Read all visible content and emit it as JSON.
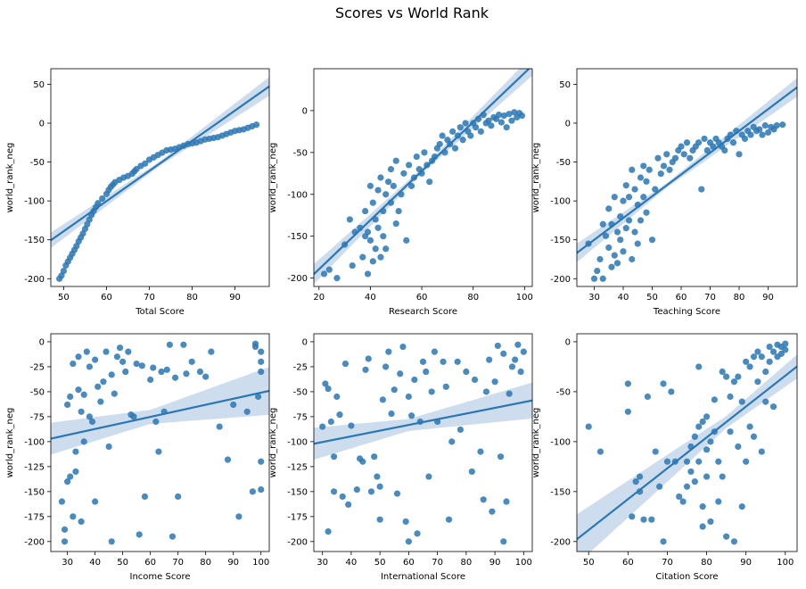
{
  "figure": {
    "title": "Scores vs World Rank"
  },
  "colors": {
    "point": "#2a77b4",
    "line": "#2a77b4",
    "band": "#c4d7ea",
    "axis": "#000000"
  },
  "chart_data": [
    {
      "type": "scatter",
      "xlabel": "Total Score",
      "ylabel": "world_rank_neg",
      "xlim": [
        47,
        98
      ],
      "ylim": [
        -210,
        70
      ],
      "xticks": [
        50,
        60,
        70,
        80,
        90
      ],
      "yticks": [
        -200,
        -150,
        -100,
        -50,
        0,
        50
      ],
      "fit": {
        "slope": 3.88,
        "intercept": -333,
        "band": [
          [
            47,
            10
          ],
          [
            72,
            3
          ],
          [
            98,
            12
          ]
        ]
      },
      "x": [
        49,
        49.5,
        50,
        50.5,
        51,
        51.5,
        52,
        52.5,
        53,
        53.5,
        54,
        54.5,
        55,
        55.5,
        56,
        56.5,
        57,
        57.5,
        58,
        59,
        60,
        60.5,
        61,
        61.5,
        62,
        63,
        64,
        65,
        66,
        66.5,
        67,
        68,
        69,
        70,
        71,
        72,
        73,
        74,
        75,
        76,
        77,
        78,
        79,
        80,
        81,
        82,
        83,
        84,
        85,
        86,
        87,
        88,
        89,
        90,
        91,
        92,
        93,
        94,
        95
      ],
      "y": [
        -200,
        -196,
        -190,
        -183,
        -178,
        -173,
        -168,
        -163,
        -158,
        -152,
        -147,
        -142,
        -136,
        -130,
        -124,
        -118,
        -113,
        -108,
        -103,
        -97,
        -91,
        -86,
        -82,
        -79,
        -76,
        -73,
        -70,
        -68,
        -65,
        -62,
        -59,
        -55,
        -52,
        -47,
        -44,
        -41,
        -38,
        -35,
        -34,
        -33,
        -31,
        -29,
        -27,
        -26,
        -25,
        -23,
        -21,
        -20,
        -19,
        -18,
        -16,
        -14,
        -12,
        -10,
        -9,
        -8,
        -6,
        -4,
        -2
      ]
    },
    {
      "type": "scatter",
      "xlabel": "Research Score",
      "ylabel": "world_rank_neg",
      "xlim": [
        18,
        103
      ],
      "ylim": [
        -210,
        50
      ],
      "xticks": [
        20,
        40,
        60,
        80,
        100
      ],
      "yticks": [
        -200,
        -150,
        -100,
        -50,
        0
      ],
      "fit": {
        "slope": 2.93,
        "intercept": -248,
        "band": [
          [
            18,
            12
          ],
          [
            60,
            3
          ],
          [
            103,
            12
          ]
        ]
      },
      "x": [
        22,
        24,
        27,
        30,
        32,
        33,
        34,
        36,
        37,
        38,
        38,
        39,
        39,
        40,
        40,
        41,
        41,
        42,
        42,
        43,
        43,
        44,
        44,
        45,
        45,
        46,
        46,
        47,
        48,
        48,
        49,
        50,
        50,
        51,
        52,
        53,
        54,
        55,
        56,
        57,
        58,
        59,
        60,
        61,
        62,
        63,
        64,
        65,
        66,
        67,
        68,
        69,
        70,
        71,
        72,
        73,
        74,
        75,
        76,
        77,
        78,
        79,
        80,
        81,
        82,
        83,
        84,
        85,
        86,
        87,
        88,
        89,
        90,
        91,
        92,
        93,
        94,
        95,
        96,
        97,
        98,
        99
      ],
      "y": [
        -195,
        -190,
        -200,
        -160,
        -130,
        -185,
        -145,
        -140,
        -175,
        -150,
        -120,
        -195,
        -145,
        -90,
        -155,
        -110,
        -180,
        -130,
        -165,
        -95,
        -140,
        -80,
        -175,
        -150,
        -120,
        -100,
        -165,
        -85,
        -110,
        -70,
        -90,
        -135,
        -60,
        -120,
        -100,
        -75,
        -155,
        -65,
        -90,
        -80,
        -55,
        -70,
        -75,
        -50,
        -65,
        -85,
        -60,
        -55,
        -45,
        -40,
        -30,
        -50,
        -35,
        -40,
        -25,
        -45,
        -30,
        -20,
        -35,
        -15,
        -25,
        -30,
        -15,
        -20,
        -10,
        -25,
        -5,
        -15,
        -12,
        -18,
        -8,
        -10,
        -5,
        -14,
        -6,
        -20,
        -4,
        -12,
        -2,
        -8,
        -3,
        -6
      ]
    },
    {
      "type": "scatter",
      "xlabel": "Teaching Score",
      "ylabel": "world_rank_neg",
      "xlim": [
        24,
        100
      ],
      "ylim": [
        -210,
        70
      ],
      "xticks": [
        30,
        40,
        50,
        60,
        70,
        80,
        90
      ],
      "yticks": [
        -200,
        -150,
        -100,
        -50,
        0,
        50
      ],
      "fit": {
        "slope": 2.8,
        "intercept": -234,
        "band": [
          [
            24,
            12
          ],
          [
            55,
            3
          ],
          [
            100,
            12
          ]
        ]
      },
      "x": [
        28,
        30,
        31,
        32,
        33,
        33,
        34,
        35,
        35,
        36,
        36,
        37,
        37,
        38,
        38,
        39,
        39,
        40,
        40,
        41,
        41,
        42,
        42,
        43,
        43,
        44,
        44,
        45,
        45,
        46,
        46,
        47,
        47,
        48,
        48,
        49,
        50,
        51,
        52,
        53,
        54,
        55,
        56,
        57,
        58,
        59,
        60,
        61,
        62,
        63,
        64,
        65,
        66,
        67,
        68,
        69,
        70,
        71,
        72,
        73,
        74,
        75,
        76,
        77,
        78,
        79,
        80,
        81,
        82,
        83,
        84,
        85,
        86,
        87,
        88,
        89,
        90,
        91,
        92,
        93,
        95
      ],
      "y": [
        -155,
        -200,
        -190,
        -175,
        -130,
        -200,
        -145,
        -160,
        -110,
        -185,
        -130,
        -170,
        -95,
        -180,
        -140,
        -150,
        -120,
        -165,
        -100,
        -135,
        -80,
        -125,
        -95,
        -175,
        -60,
        -140,
        -85,
        -155,
        -105,
        -70,
        -125,
        -95,
        -55,
        -75,
        -115,
        -60,
        -150,
        -85,
        -45,
        -65,
        -55,
        -40,
        -60,
        -50,
        -45,
        -35,
        -30,
        -40,
        -25,
        -45,
        -35,
        -30,
        -25,
        -85,
        -20,
        -35,
        -25,
        -30,
        -20,
        -25,
        -30,
        -35,
        -20,
        -15,
        -25,
        -10,
        -40,
        -15,
        -20,
        -10,
        -15,
        -5,
        -10,
        -8,
        -15,
        -3,
        -12,
        -5,
        -8,
        -3,
        -2
      ]
    },
    {
      "type": "scatter",
      "xlabel": "Income Score",
      "ylabel": "world_rank_neg",
      "xlim": [
        24,
        103
      ],
      "ylim": [
        -210,
        8
      ],
      "xticks": [
        30,
        40,
        50,
        60,
        70,
        80,
        90,
        100
      ],
      "yticks": [
        -200,
        -175,
        -150,
        -125,
        -100,
        -75,
        -50,
        -25,
        0
      ],
      "fit": {
        "slope": 0.605,
        "intercept": -111.5,
        "band": [
          [
            24,
            16
          ],
          [
            60,
            7
          ],
          [
            103,
            24
          ]
        ]
      },
      "x": [
        28,
        29,
        29,
        30,
        30,
        31,
        31,
        32,
        32,
        33,
        33,
        34,
        34,
        35,
        35,
        36,
        36,
        37,
        38,
        38,
        39,
        40,
        40,
        41,
        42,
        43,
        44,
        45,
        46,
        46,
        47,
        48,
        49,
        50,
        51,
        52,
        53,
        54,
        55,
        56,
        57,
        58,
        60,
        61,
        62,
        63,
        64,
        65,
        66,
        67,
        68,
        69,
        70,
        72,
        73,
        75,
        78,
        80,
        82,
        85,
        88,
        90,
        92,
        95,
        97,
        98,
        98,
        99,
        100,
        100,
        100,
        100,
        100
      ],
      "y": [
        -160,
        -188,
        -200,
        -140,
        -63,
        -135,
        -55,
        -175,
        -22,
        -110,
        -130,
        -15,
        -48,
        -180,
        -70,
        -100,
        -53,
        -10,
        -25,
        -75,
        -80,
        -160,
        -18,
        -45,
        -60,
        -40,
        -10,
        -105,
        -33,
        -200,
        -52,
        -15,
        -6,
        -20,
        -30,
        -10,
        -73,
        -75,
        -22,
        -193,
        -24,
        -155,
        -38,
        -26,
        -80,
        -110,
        -30,
        -70,
        -28,
        -3,
        -195,
        -36,
        -155,
        -3,
        -32,
        -20,
        -30,
        -35,
        -10,
        -85,
        -118,
        -63,
        -175,
        -70,
        -150,
        -2,
        -5,
        -55,
        -10,
        -20,
        -30,
        -120,
        -148
      ]
    },
    {
      "type": "scatter",
      "xlabel": "International Score",
      "ylabel": "world_rank_neg",
      "xlim": [
        27,
        103
      ],
      "ylim": [
        -210,
        8
      ],
      "xticks": [
        30,
        40,
        50,
        60,
        70,
        80,
        90,
        100
      ],
      "yticks": [
        -200,
        -175,
        -150,
        -125,
        -100,
        -75,
        -50,
        -25,
        0
      ],
      "fit": {
        "slope": 0.57,
        "intercept": -117.5,
        "band": [
          [
            27,
            16
          ],
          [
            60,
            6
          ],
          [
            103,
            18
          ]
        ]
      },
      "x": [
        30,
        31,
        32,
        32,
        33,
        34,
        34,
        35,
        36,
        37,
        38,
        39,
        40,
        42,
        43,
        44,
        45,
        46,
        47,
        48,
        49,
        50,
        50,
        51,
        52,
        53,
        54,
        55,
        56,
        57,
        58,
        59,
        60,
        60,
        61,
        62,
        63,
        64,
        65,
        66,
        67,
        68,
        69,
        70,
        72,
        73,
        74,
        75,
        77,
        78,
        80,
        82,
        83,
        85,
        86,
        87,
        88,
        89,
        90,
        91,
        92,
        93,
        93,
        94,
        95,
        96,
        97,
        98,
        99,
        100
      ],
      "y": [
        -85,
        -42,
        -190,
        -47,
        -80,
        -115,
        -150,
        -55,
        -73,
        -155,
        -22,
        -163,
        -84,
        -148,
        -117,
        -120,
        -28,
        -17,
        -150,
        -115,
        -135,
        -178,
        -145,
        -58,
        -25,
        -10,
        -72,
        -48,
        -152,
        -32,
        -5,
        -180,
        -200,
        -55,
        -74,
        -38,
        -192,
        -80,
        -20,
        -30,
        -135,
        -50,
        -10,
        -80,
        -20,
        -45,
        -178,
        -100,
        -20,
        -88,
        -30,
        -130,
        -38,
        -110,
        -158,
        -50,
        -18,
        -170,
        -40,
        -4,
        -115,
        -12,
        -200,
        -160,
        -52,
        -25,
        -18,
        -3,
        -30,
        -10
      ]
    },
    {
      "type": "scatter",
      "xlabel": "Citation Score",
      "ylabel": "world_rank_neg",
      "xlim": [
        47,
        103
      ],
      "ylim": [
        -210,
        8
      ],
      "xticks": [
        50,
        60,
        70,
        80,
        90,
        100
      ],
      "yticks": [
        -200,
        -150,
        -100,
        -50,
        0
      ],
      "fit": {
        "slope": 3.09,
        "intercept": -343,
        "band": [
          [
            47,
            25
          ],
          [
            85,
            6
          ],
          [
            103,
            12
          ]
        ]
      },
      "x": [
        50,
        53,
        60,
        60,
        61,
        62,
        63,
        63,
        64,
        65,
        66,
        67,
        68,
        69,
        69,
        70,
        71,
        72,
        73,
        74,
        75,
        75,
        76,
        76,
        77,
        77,
        78,
        78,
        78,
        79,
        79,
        79,
        80,
        80,
        80,
        81,
        81,
        82,
        82,
        83,
        83,
        84,
        84,
        85,
        85,
        86,
        86,
        87,
        87,
        88,
        88,
        89,
        89,
        90,
        90,
        91,
        91,
        92,
        92,
        93,
        93,
        94,
        94,
        95,
        95,
        96,
        96,
        97,
        97,
        98,
        98,
        99,
        99,
        100,
        100
      ],
      "y": [
        -85,
        -110,
        -42,
        -70,
        -175,
        -140,
        -135,
        -150,
        -178,
        -55,
        -178,
        -110,
        -145,
        -42,
        -200,
        -120,
        -50,
        -120,
        -155,
        -160,
        -145,
        -120,
        -105,
        -130,
        -95,
        -140,
        -85,
        -120,
        -25,
        -165,
        -80,
        -185,
        -75,
        -108,
        -135,
        -180,
        -100,
        -58,
        -90,
        -120,
        -160,
        -30,
        -135,
        -35,
        -195,
        -55,
        -90,
        -40,
        -200,
        -105,
        -35,
        -165,
        -60,
        -120,
        -20,
        -25,
        -85,
        -15,
        -95,
        -10,
        -40,
        -110,
        -15,
        -60,
        -30,
        -20,
        -5,
        -65,
        -10,
        -15,
        -3,
        -5,
        -12,
        -8,
        -2
      ]
    }
  ]
}
